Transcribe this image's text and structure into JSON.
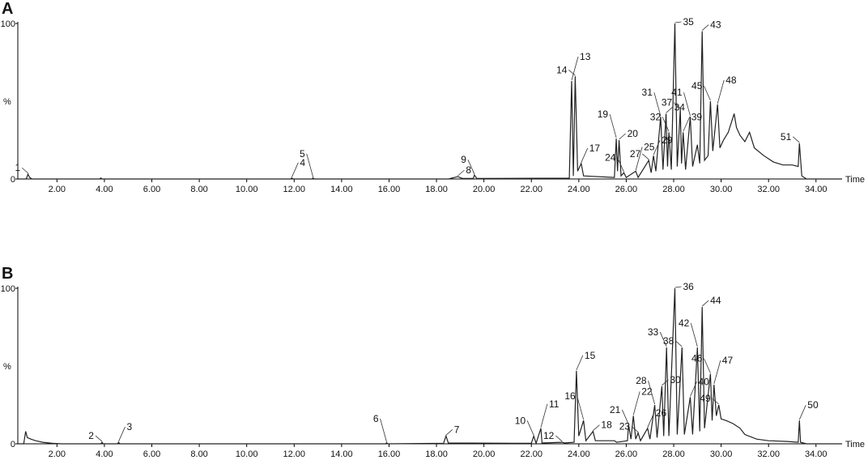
{
  "chart_data": [
    {
      "type": "line",
      "title": "A",
      "xlabel": "Time",
      "ylabel": "%",
      "color": "#222",
      "xlim": [
        0.35,
        35.1
      ],
      "ylim": [
        0,
        100
      ],
      "yticks": [
        0,
        100
      ],
      "xticks": [
        {
          "value": 2,
          "label": "2.00"
        },
        {
          "value": 4,
          "label": "4.00"
        },
        {
          "value": 6,
          "label": "6.00"
        },
        {
          "value": 8,
          "label": "8.00"
        },
        {
          "value": 10,
          "label": "10.00"
        },
        {
          "value": 12,
          "label": "12.00"
        },
        {
          "value": 14,
          "label": "14.00"
        },
        {
          "value": 16,
          "label": "16.00"
        },
        {
          "value": 18,
          "label": "18.00"
        },
        {
          "value": 20,
          "label": "20.00"
        },
        {
          "value": 22,
          "label": "22.00"
        },
        {
          "value": 24,
          "label": "24.00"
        },
        {
          "value": 26,
          "label": "26.00"
        },
        {
          "value": 28,
          "label": "28.00"
        },
        {
          "value": 30,
          "label": "30.00"
        },
        {
          "value": 32,
          "label": "32.00"
        },
        {
          "value": 34,
          "label": "34.00"
        }
      ],
      "x": [
        0.35,
        0.7,
        0.78,
        0.85,
        0.95,
        3.8,
        3.85,
        3.9,
        11.85,
        11.9,
        11.95,
        12.75,
        12.8,
        12.85,
        18.5,
        18.9,
        19.1,
        19.55,
        19.6,
        19.7,
        23.6,
        23.7,
        23.77,
        23.85,
        23.95,
        24.1,
        24.2,
        25.5,
        25.58,
        25.63,
        25.7,
        25.78,
        25.9,
        26.0,
        26.4,
        26.5,
        26.95,
        27.05,
        27.15,
        27.25,
        27.45,
        27.55,
        27.68,
        27.74,
        27.8,
        27.9,
        28.05,
        28.15,
        28.28,
        28.33,
        28.4,
        28.5,
        28.7,
        28.8,
        29.0,
        29.1,
        29.2,
        29.3,
        29.45,
        29.55,
        29.65,
        29.85,
        29.95,
        30.1,
        30.3,
        30.55,
        30.65,
        30.8,
        31.0,
        31.2,
        31.4,
        31.8,
        32.2,
        32.6,
        33.0,
        33.25,
        33.3,
        33.4,
        33.6,
        35.1
      ],
      "values": [
        0,
        0,
        3,
        1,
        0,
        0,
        0.6,
        0,
        0,
        0.6,
        0,
        0,
        0.6,
        0,
        0,
        1.5,
        0.3,
        0.3,
        2.5,
        0.3,
        0.5,
        63,
        2,
        66,
        5,
        10,
        2,
        1,
        26,
        5,
        25,
        2,
        4,
        1,
        5,
        1,
        12,
        4,
        15,
        5,
        40,
        6,
        42,
        8,
        30,
        6,
        100,
        8,
        45,
        10,
        30,
        6,
        40,
        8,
        22,
        10,
        95,
        12,
        15,
        50,
        18,
        48,
        20,
        25,
        30,
        42,
        33,
        28,
        24,
        30,
        20,
        15,
        11,
        9,
        9,
        8,
        23,
        2,
        0,
        0
      ],
      "peaks": [
        {
          "label": "1",
          "x": 0.8,
          "y": 3
        },
        {
          "label": "4",
          "x": 11.9,
          "y": 0.6
        },
        {
          "label": "5",
          "x": 12.8,
          "y": 0.6
        },
        {
          "label": "8",
          "x": 18.9,
          "y": 1.5
        },
        {
          "label": "9",
          "x": 19.6,
          "y": 2.5
        },
        {
          "label": "13",
          "x": 23.7,
          "y": 63
        },
        {
          "label": "14",
          "x": 23.85,
          "y": 66
        },
        {
          "label": "17",
          "x": 24.1,
          "y": 10
        },
        {
          "label": "19",
          "x": 25.58,
          "y": 26
        },
        {
          "label": "20",
          "x": 25.7,
          "y": 25
        },
        {
          "label": "24",
          "x": 25.9,
          "y": 4
        },
        {
          "label": "25",
          "x": 26.4,
          "y": 5
        },
        {
          "label": "27",
          "x": 26.95,
          "y": 12
        },
        {
          "label": "29",
          "x": 27.15,
          "y": 15
        },
        {
          "label": "31",
          "x": 27.45,
          "y": 40
        },
        {
          "label": "34",
          "x": 27.68,
          "y": 42
        },
        {
          "label": "32",
          "x": 27.8,
          "y": 30
        },
        {
          "label": "35",
          "x": 28.05,
          "y": 100
        },
        {
          "label": "37",
          "x": 28.28,
          "y": 45
        },
        {
          "label": "39",
          "x": 28.4,
          "y": 30
        },
        {
          "label": "41",
          "x": 28.7,
          "y": 40
        },
        {
          "label": "43",
          "x": 29.2,
          "y": 95
        },
        {
          "label": "45",
          "x": 29.55,
          "y": 50
        },
        {
          "label": "48",
          "x": 29.85,
          "y": 48
        },
        {
          "label": "51",
          "x": 33.3,
          "y": 23
        }
      ]
    },
    {
      "type": "line",
      "title": "B",
      "xlabel": "Time",
      "ylabel": "%",
      "color": "#222",
      "xlim": [
        0.35,
        35.1
      ],
      "ylim": [
        0,
        100
      ],
      "yticks": [
        0,
        100
      ],
      "xticks": [
        {
          "value": 2,
          "label": "2.00"
        },
        {
          "value": 4,
          "label": "4.00"
        },
        {
          "value": 6,
          "label": "6.00"
        },
        {
          "value": 8,
          "label": "8.00"
        },
        {
          "value": 10,
          "label": "10.00"
        },
        {
          "value": 12,
          "label": "12.00"
        },
        {
          "value": 14,
          "label": "14.00"
        },
        {
          "value": 16,
          "label": "16.00"
        },
        {
          "value": 18,
          "label": "18.00"
        },
        {
          "value": 20,
          "label": "20.00"
        },
        {
          "value": 22,
          "label": "22.00"
        },
        {
          "value": 24,
          "label": "24.00"
        },
        {
          "value": 26,
          "label": "26.00"
        },
        {
          "value": 28,
          "label": "28.00"
        },
        {
          "value": 30,
          "label": "30.00"
        },
        {
          "value": 32,
          "label": "32.00"
        },
        {
          "value": 34,
          "label": "34.00"
        }
      ],
      "x": [
        0.35,
        0.6,
        0.68,
        0.75,
        0.9,
        1.1,
        1.4,
        1.8,
        2.2,
        3.85,
        3.9,
        3.95,
        4.55,
        4.6,
        4.65,
        15.85,
        15.9,
        15.95,
        18.3,
        18.4,
        18.5,
        22.0,
        22.1,
        22.2,
        22.4,
        22.45,
        23.3,
        23.4,
        23.8,
        23.9,
        24.0,
        24.2,
        24.3,
        24.6,
        24.7,
        25.5,
        25.6,
        26.05,
        26.1,
        26.2,
        26.3,
        26.4,
        26.5,
        26.6,
        26.9,
        27.0,
        27.2,
        27.3,
        27.5,
        27.58,
        27.7,
        27.8,
        28.05,
        28.15,
        28.35,
        28.45,
        28.7,
        28.8,
        29.0,
        29.1,
        29.2,
        29.3,
        29.55,
        29.62,
        29.7,
        29.8,
        29.9,
        30.0,
        30.2,
        30.5,
        30.8,
        31.0,
        31.5,
        32.0,
        32.8,
        33.25,
        33.3,
        33.35,
        33.6,
        35.1
      ],
      "values": [
        0,
        0,
        8,
        4,
        3,
        2,
        1,
        0.3,
        0,
        0,
        1,
        0,
        0,
        1,
        0,
        0,
        0.6,
        0,
        0.3,
        5,
        0.5,
        0.3,
        5,
        0.3,
        10,
        0.5,
        1,
        0.5,
        1,
        47,
        5,
        15,
        2,
        8,
        2,
        2,
        1,
        2,
        12,
        3,
        18,
        3,
        7,
        2,
        10,
        3,
        25,
        4,
        37,
        5,
        62,
        5,
        100,
        6,
        62,
        6,
        30,
        6,
        62,
        8,
        88,
        10,
        45,
        15,
        38,
        18,
        25,
        16,
        15,
        13,
        10,
        6,
        3,
        2,
        1.5,
        1,
        15,
        1,
        0,
        0
      ],
      "peaks": [
        {
          "label": "2",
          "x": 3.9,
          "y": 1
        },
        {
          "label": "3",
          "x": 4.6,
          "y": 1
        },
        {
          "label": "6",
          "x": 15.9,
          "y": 0.6
        },
        {
          "label": "7",
          "x": 18.4,
          "y": 5
        },
        {
          "label": "10",
          "x": 22.1,
          "y": 5
        },
        {
          "label": "11",
          "x": 22.4,
          "y": 10
        },
        {
          "label": "12",
          "x": 23.3,
          "y": 1
        },
        {
          "label": "15",
          "x": 23.9,
          "y": 47
        },
        {
          "label": "16",
          "x": 24.2,
          "y": 15
        },
        {
          "label": "18",
          "x": 24.6,
          "y": 8
        },
        {
          "label": "21",
          "x": 26.1,
          "y": 12
        },
        {
          "label": "22",
          "x": 26.3,
          "y": 18
        },
        {
          "label": "23",
          "x": 26.5,
          "y": 7
        },
        {
          "label": "26",
          "x": 26.9,
          "y": 10
        },
        {
          "label": "28",
          "x": 27.2,
          "y": 25
        },
        {
          "label": "30",
          "x": 27.5,
          "y": 37
        },
        {
          "label": "33",
          "x": 27.7,
          "y": 62
        },
        {
          "label": "36",
          "x": 28.05,
          "y": 100
        },
        {
          "label": "38",
          "x": 28.35,
          "y": 62
        },
        {
          "label": "40",
          "x": 28.7,
          "y": 30
        },
        {
          "label": "42",
          "x": 29.0,
          "y": 62
        },
        {
          "label": "44",
          "x": 29.2,
          "y": 88
        },
        {
          "label": "46",
          "x": 29.55,
          "y": 45
        },
        {
          "label": "47",
          "x": 29.7,
          "y": 38
        },
        {
          "label": "49",
          "x": 29.9,
          "y": 25
        },
        {
          "label": "50",
          "x": 33.3,
          "y": 15
        }
      ]
    }
  ]
}
